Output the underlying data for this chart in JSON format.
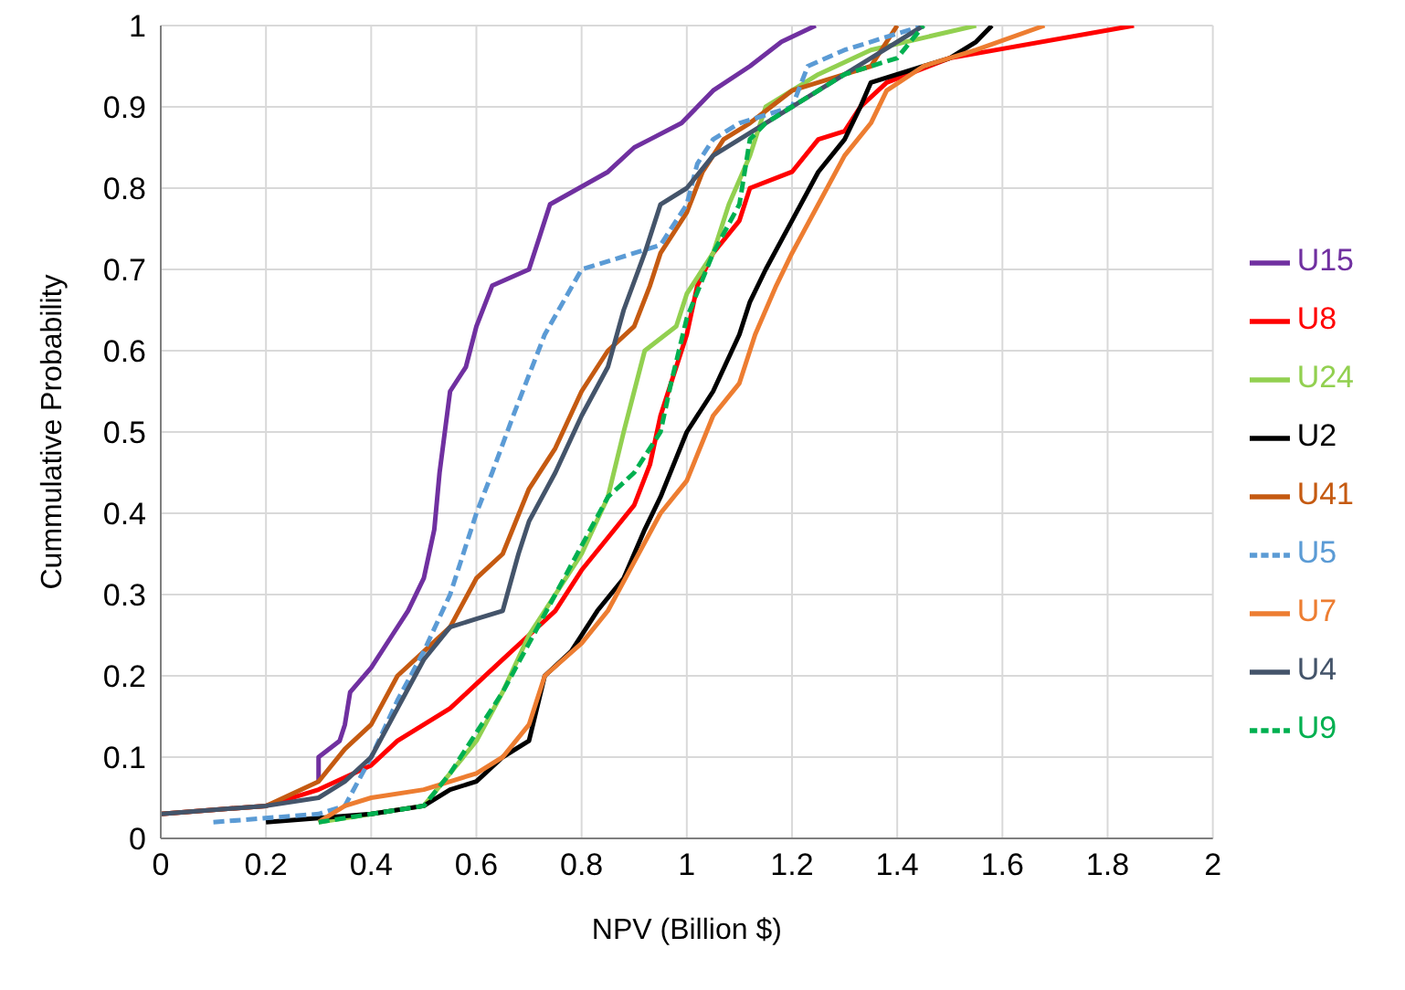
{
  "chart_data": {
    "type": "line",
    "xlabel": "NPV (Billion $)",
    "ylabel": "Cummulative Probability",
    "xlim": [
      0,
      2
    ],
    "xticks": [
      0,
      0.2,
      0.4,
      0.6,
      0.8,
      1,
      1.2,
      1.4,
      1.6,
      1.8,
      2
    ],
    "ylim": [
      0,
      1
    ],
    "yticks": [
      0,
      0.1,
      0.2,
      0.3,
      0.4,
      0.5,
      0.6,
      0.7,
      0.8,
      0.9,
      1
    ],
    "grid": true,
    "legend": "right",
    "marker": "none",
    "series": [
      {
        "name": "U15",
        "color": "#7030a0",
        "x": [
          0.3,
          0.3,
          0.34,
          0.35,
          0.36,
          0.4,
          0.44,
          0.47,
          0.5,
          0.52,
          0.53,
          0.55,
          0.58,
          0.6,
          0.63,
          0.7,
          0.72,
          0.74,
          0.85,
          0.9,
          0.93,
          0.99,
          1.05,
          1.12,
          1.18,
          1.245
        ],
        "values": [
          0.07,
          0.1,
          0.12,
          0.14,
          0.18,
          0.21,
          0.25,
          0.28,
          0.32,
          0.38,
          0.45,
          0.55,
          0.58,
          0.63,
          0.68,
          0.7,
          0.74,
          0.78,
          0.82,
          0.85,
          0.86,
          0.88,
          0.92,
          0.95,
          0.98,
          1
        ]
      },
      {
        "name": "U8",
        "color": "#ff0000",
        "x": [
          0,
          0.2,
          0.3,
          0.4,
          0.45,
          0.5,
          0.55,
          0.6,
          0.65,
          0.7,
          0.75,
          0.8,
          0.85,
          0.9,
          0.93,
          0.95,
          0.97,
          1,
          1.02,
          1.05,
          1.1,
          1.12,
          1.2,
          1.25,
          1.3,
          1.33,
          1.38,
          1.5,
          1.85
        ],
        "values": [
          0.03,
          0.04,
          0.06,
          0.09,
          0.12,
          0.14,
          0.16,
          0.19,
          0.22,
          0.25,
          0.28,
          0.33,
          0.37,
          0.41,
          0.46,
          0.52,
          0.56,
          0.62,
          0.68,
          0.72,
          0.76,
          0.8,
          0.82,
          0.86,
          0.87,
          0.9,
          0.93,
          0.96,
          1
        ]
      },
      {
        "name": "U24",
        "color": "#92d050",
        "x": [
          0.3,
          0.4,
          0.5,
          0.55,
          0.6,
          0.65,
          0.7,
          0.75,
          0.8,
          0.85,
          0.88,
          0.9,
          0.92,
          0.98,
          1,
          1.05,
          1.08,
          1.12,
          1.15,
          1.25,
          1.35,
          1.55
        ],
        "values": [
          0.02,
          0.03,
          0.04,
          0.08,
          0.12,
          0.18,
          0.25,
          0.3,
          0.35,
          0.42,
          0.5,
          0.55,
          0.6,
          0.63,
          0.67,
          0.72,
          0.78,
          0.84,
          0.9,
          0.94,
          0.97,
          1
        ]
      },
      {
        "name": "U2",
        "color": "#000000",
        "x": [
          0.2,
          0.4,
          0.5,
          0.55,
          0.6,
          0.65,
          0.7,
          0.73,
          0.78,
          0.83,
          0.88,
          0.92,
          0.95,
          1,
          1.05,
          1.1,
          1.12,
          1.15,
          1.2,
          1.25,
          1.3,
          1.33,
          1.35,
          1.45,
          1.5,
          1.55,
          1.58
        ],
        "values": [
          0.02,
          0.03,
          0.04,
          0.06,
          0.07,
          0.1,
          0.12,
          0.2,
          0.23,
          0.28,
          0.32,
          0.38,
          0.42,
          0.5,
          0.55,
          0.62,
          0.66,
          0.7,
          0.76,
          0.82,
          0.86,
          0.9,
          0.93,
          0.95,
          0.96,
          0.98,
          1
        ]
      },
      {
        "name": "U41",
        "color": "#c55a11",
        "x": [
          0,
          0.2,
          0.3,
          0.35,
          0.4,
          0.45,
          0.5,
          0.55,
          0.6,
          0.65,
          0.7,
          0.75,
          0.8,
          0.85,
          0.9,
          0.93,
          0.95,
          1,
          1.03,
          1.07,
          1.12,
          1.2,
          1.3,
          1.35,
          1.4
        ],
        "values": [
          0.03,
          0.04,
          0.07,
          0.11,
          0.14,
          0.2,
          0.23,
          0.26,
          0.32,
          0.35,
          0.43,
          0.48,
          0.55,
          0.6,
          0.63,
          0.68,
          0.72,
          0.77,
          0.82,
          0.86,
          0.88,
          0.92,
          0.94,
          0.95,
          1
        ]
      },
      {
        "name": "U5",
        "color": "#5b9bd5",
        "line_style": "dashed",
        "x": [
          0.1,
          0.3,
          0.35,
          0.4,
          0.45,
          0.5,
          0.55,
          0.58,
          0.6,
          0.63,
          0.67,
          0.7,
          0.73,
          0.8,
          0.85,
          0.95,
          1,
          1.02,
          1.05,
          1.1,
          1.2,
          1.23,
          1.3,
          1.45
        ],
        "values": [
          0.02,
          0.03,
          0.04,
          0.1,
          0.17,
          0.23,
          0.3,
          0.36,
          0.4,
          0.45,
          0.52,
          0.57,
          0.62,
          0.7,
          0.71,
          0.73,
          0.78,
          0.83,
          0.86,
          0.88,
          0.9,
          0.95,
          0.97,
          1
        ]
      },
      {
        "name": "U7",
        "color": "#ed7d31",
        "x": [
          0.3,
          0.35,
          0.4,
          0.5,
          0.6,
          0.65,
          0.7,
          0.73,
          0.8,
          0.85,
          0.9,
          0.95,
          1,
          1.05,
          1.1,
          1.13,
          1.17,
          1.2,
          1.25,
          1.3,
          1.35,
          1.38,
          1.45,
          1.55,
          1.68
        ],
        "values": [
          0.02,
          0.04,
          0.05,
          0.06,
          0.08,
          0.1,
          0.14,
          0.2,
          0.24,
          0.28,
          0.34,
          0.4,
          0.44,
          0.52,
          0.56,
          0.62,
          0.68,
          0.72,
          0.78,
          0.84,
          0.88,
          0.92,
          0.95,
          0.97,
          1
        ]
      },
      {
        "name": "U4",
        "color": "#44546a",
        "x": [
          0,
          0.2,
          0.3,
          0.35,
          0.4,
          0.45,
          0.5,
          0.55,
          0.6,
          0.65,
          0.68,
          0.7,
          0.75,
          0.8,
          0.85,
          0.88,
          0.92,
          0.95,
          1,
          1.05,
          1.15,
          1.25,
          1.35,
          1.45
        ],
        "values": [
          0.03,
          0.04,
          0.05,
          0.07,
          0.1,
          0.16,
          0.22,
          0.26,
          0.27,
          0.28,
          0.35,
          0.39,
          0.45,
          0.52,
          0.58,
          0.65,
          0.72,
          0.78,
          0.8,
          0.84,
          0.88,
          0.92,
          0.96,
          1
        ]
      },
      {
        "name": "U9",
        "color": "#00b050",
        "line_style": "dashed",
        "x": [
          0.3,
          0.4,
          0.5,
          0.55,
          0.6,
          0.65,
          0.7,
          0.75,
          0.8,
          0.85,
          0.9,
          0.95,
          0.97,
          1,
          1.05,
          1.1,
          1.12,
          1.15,
          1.2,
          1.3,
          1.4,
          1.45
        ],
        "values": [
          0.02,
          0.03,
          0.04,
          0.08,
          0.13,
          0.18,
          0.24,
          0.3,
          0.36,
          0.42,
          0.45,
          0.5,
          0.56,
          0.64,
          0.72,
          0.78,
          0.86,
          0.88,
          0.9,
          0.94,
          0.96,
          1
        ]
      }
    ]
  }
}
